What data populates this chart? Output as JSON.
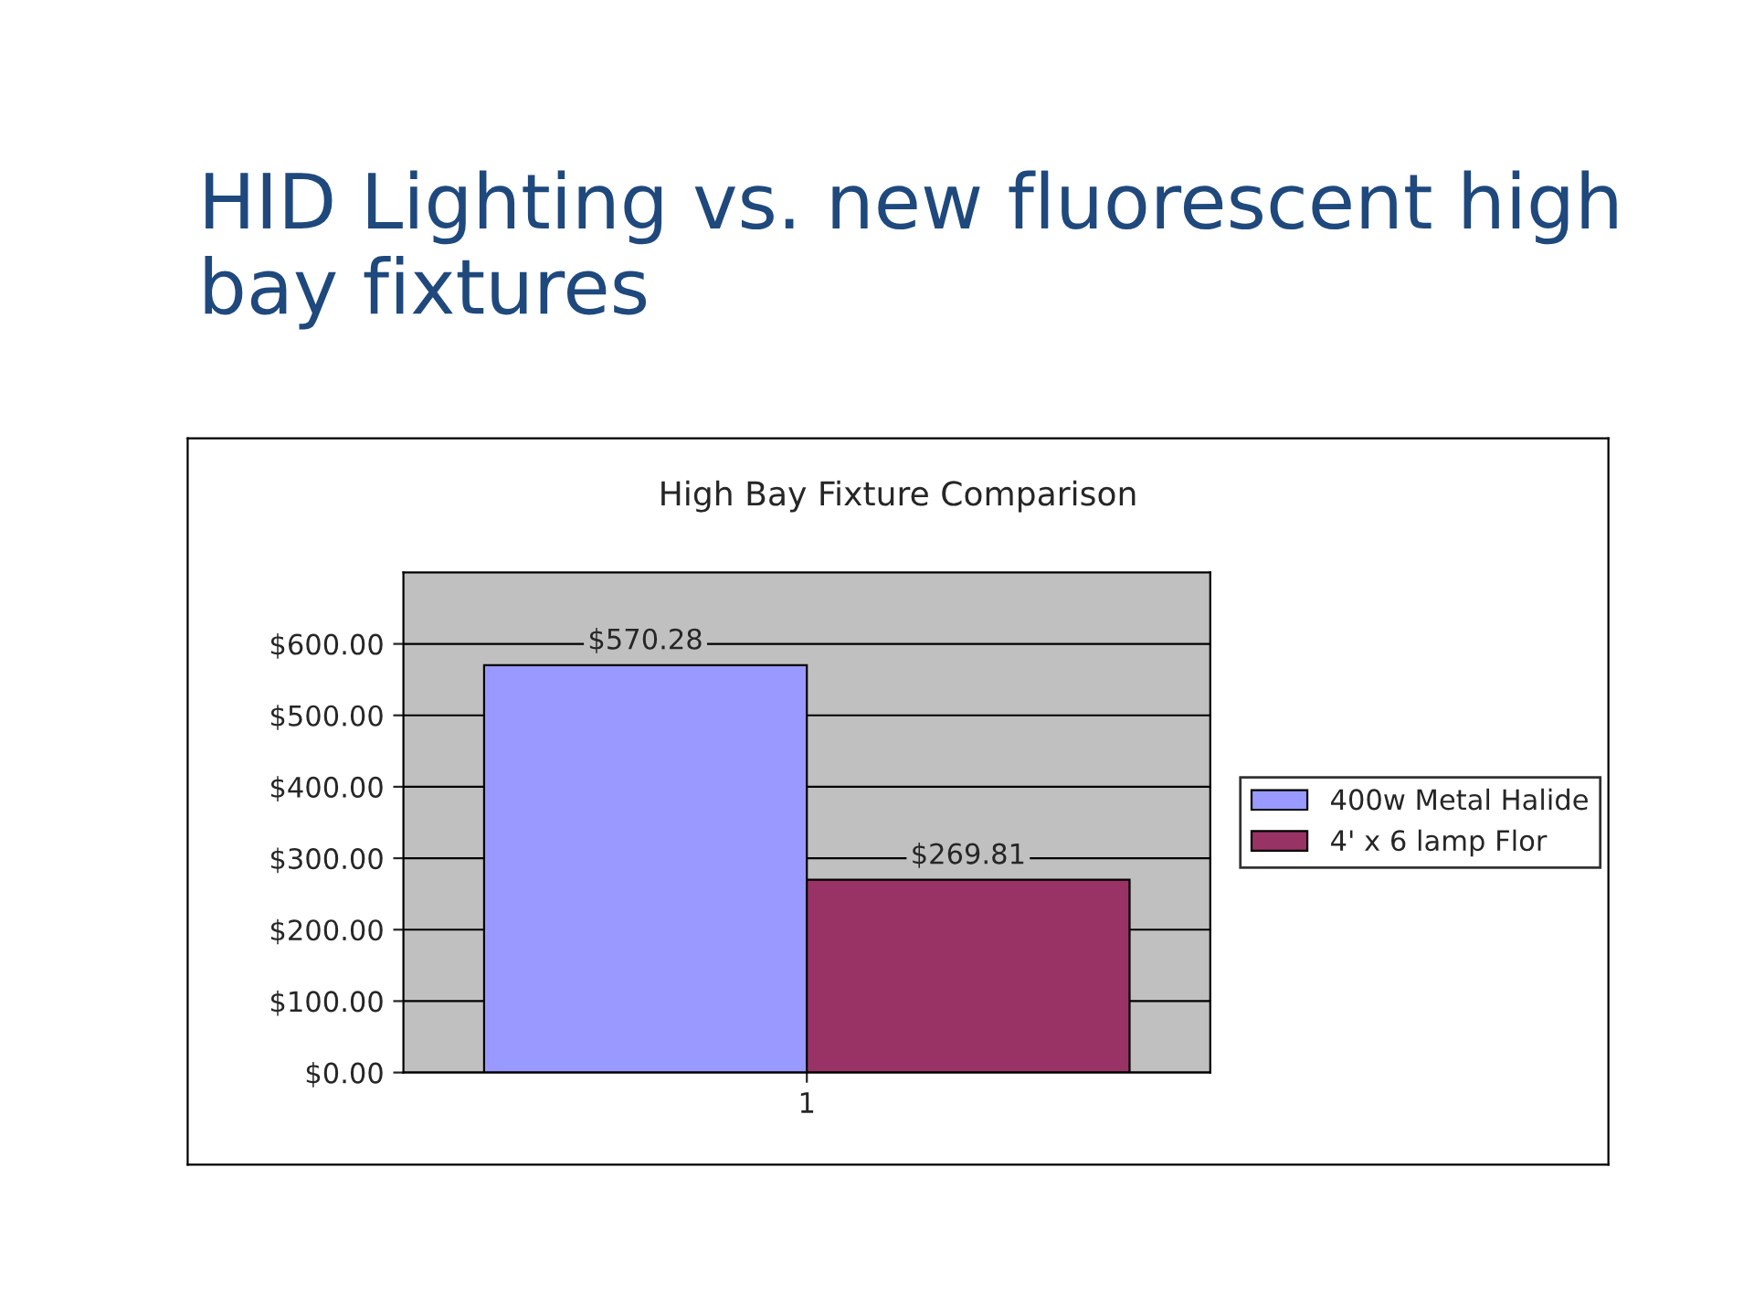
{
  "chart_data": {
    "type": "bar",
    "title": "HID Lighting vs. new fluorescent high bay fixtures",
    "subtitle": "High Bay Fixture Comparison",
    "categories": [
      "1"
    ],
    "series": [
      {
        "name": "400w Metal Halide",
        "color": "#9999ff",
        "values": [
          570.28
        ],
        "value_labels": [
          "$570.28"
        ]
      },
      {
        "name": "4' x 6 lamp Flor",
        "color": "#993366",
        "values": [
          269.81
        ],
        "value_labels": [
          "$269.81"
        ]
      }
    ],
    "ylim": [
      0,
      700
    ],
    "yticks": [
      {
        "value": 0,
        "label": "$0.00"
      },
      {
        "value": 100,
        "label": "$100.00"
      },
      {
        "value": 200,
        "label": "$200.00"
      },
      {
        "value": 300,
        "label": "$300.00"
      },
      {
        "value": 400,
        "label": "$400.00"
      },
      {
        "value": 500,
        "label": "$500.00"
      },
      {
        "value": 600,
        "label": "$600.00"
      }
    ],
    "grid": "y",
    "legend": "right"
  }
}
